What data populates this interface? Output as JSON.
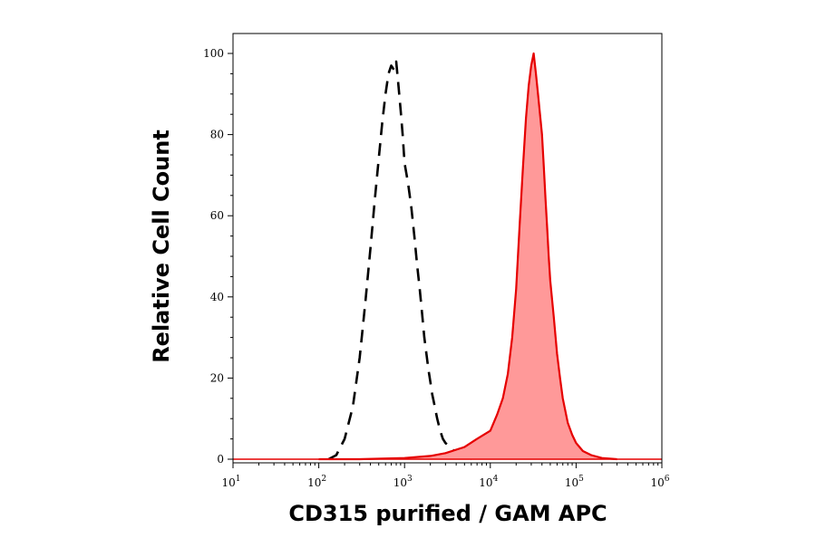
{
  "chart_data": {
    "type": "area",
    "xlabel": "CD315 purified / GAM APC",
    "ylabel": "Relative Cell Count",
    "x_scale": "log",
    "xlim": [
      10,
      1000000
    ],
    "ylim": [
      0,
      105
    ],
    "x_ticks": [
      {
        "base": "10",
        "exp": "1"
      },
      {
        "base": "10",
        "exp": "2"
      },
      {
        "base": "10",
        "exp": "3"
      },
      {
        "base": "10",
        "exp": "4"
      },
      {
        "base": "10",
        "exp": "5"
      },
      {
        "base": "10",
        "exp": "6"
      }
    ],
    "y_ticks": [
      "0",
      "20",
      "40",
      "60",
      "80",
      "100"
    ],
    "grid": false,
    "series": [
      {
        "style": "dashed-outline",
        "color": "#000000",
        "x": [
          130,
          160,
          200,
          250,
          300,
          350,
          400,
          450,
          500,
          550,
          600,
          650,
          700,
          750,
          800,
          850,
          900,
          950,
          1000,
          1100,
          1200,
          1300,
          1400,
          1500,
          1600,
          1700,
          1800,
          1900,
          2000,
          2100,
          2200,
          2400,
          2600,
          2800,
          3000,
          3400,
          3800,
          4500,
          6000
        ],
        "y": [
          0,
          1,
          5,
          13,
          25,
          39,
          52,
          64,
          74,
          83,
          90,
          95,
          97,
          96,
          98,
          92,
          86,
          80,
          73,
          68,
          62,
          55,
          48,
          42,
          36,
          30,
          26,
          22,
          19,
          16,
          14,
          10,
          7,
          5,
          4,
          3,
          2,
          1,
          0
        ]
      },
      {
        "style": "filled",
        "color": "#e60000",
        "fill": "#ff9999",
        "x": [
          100,
          300,
          1000,
          2000,
          3000,
          5000,
          7000,
          10000,
          12000,
          14000,
          16000,
          18000,
          20000,
          22000,
          24000,
          26000,
          28000,
          30000,
          32000,
          34000,
          36000,
          38000,
          40000,
          42000,
          44000,
          46000,
          48000,
          50000,
          55000,
          60000,
          65000,
          70000,
          80000,
          90000,
          100000,
          120000,
          150000,
          200000,
          300000
        ],
        "y": [
          0,
          0,
          0.3,
          0.8,
          1.5,
          3,
          5,
          7,
          11,
          15,
          21,
          30,
          42,
          58,
          72,
          84,
          92,
          97,
          100,
          95,
          90,
          85,
          80,
          72,
          64,
          57,
          50,
          44,
          35,
          26,
          20,
          15,
          9,
          6,
          4,
          2,
          1,
          0.3,
          0
        ]
      }
    ]
  }
}
